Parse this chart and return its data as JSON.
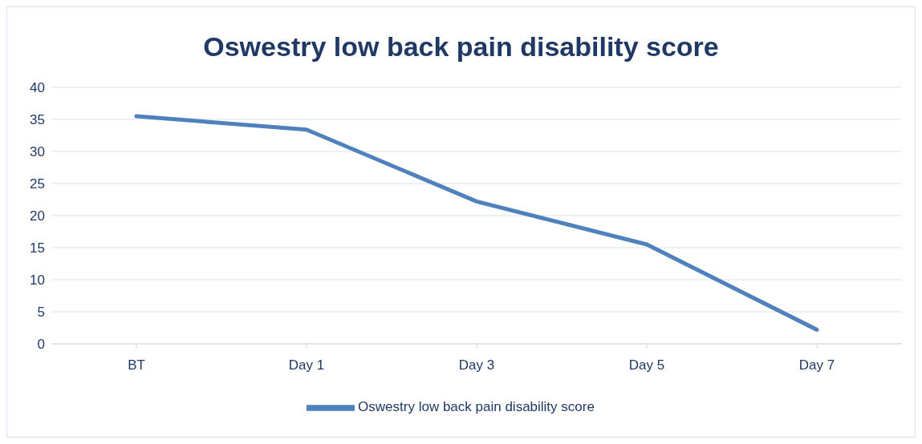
{
  "chart_data": {
    "type": "line",
    "title": "Oswestry low back pain disability score",
    "categories": [
      "BT",
      "Day 1",
      "Day 3",
      "Day 5",
      "Day 7"
    ],
    "series": [
      {
        "name": "Oswestry low back pain disability score",
        "color": "#4f81bd",
        "values": [
          35.5,
          33.4,
          22.2,
          15.5,
          2.2
        ]
      }
    ],
    "ylim": [
      0,
      40
    ],
    "yticks": [
      0,
      5,
      10,
      15,
      20,
      25,
      30,
      35,
      40
    ],
    "grid": "y",
    "legend": "bottom",
    "marker": "none",
    "line_style": "solid"
  }
}
